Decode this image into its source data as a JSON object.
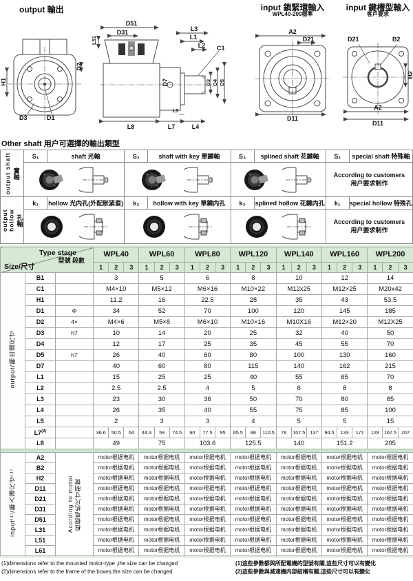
{
  "drawings": {
    "out_title": "output 輸出",
    "in1_title": "input 鎖緊環輸入",
    "in1_sub": "WPL40-200標準",
    "in2_title": "input 鍵槽型輸入",
    "in2_sub": "客戶要求",
    "h1": "H1",
    "d2": "D2",
    "d3": "D3",
    "d1": "D1",
    "d51": "D51",
    "d31": "D31",
    "l51": "L51",
    "l3": "L3",
    "l1": "L1",
    "l2": "L2",
    "c1": "C1",
    "d7": "D7",
    "d4": "D4",
    "d5": "D5",
    "l8": "L8",
    "l7": "L7",
    "l5": "L5",
    "l4": "L4",
    "a2": "A2",
    "d21": "D21",
    "d11": "D11",
    "b2": "B2",
    "h2": "H2"
  },
  "other_shaft": {
    "title": "Other shaft  用户可選擇的輸出類型",
    "rows": [
      {
        "side_en": "output shaft",
        "side_cn": "實軸",
        "cells": [
          {
            "code": "S₁",
            "name": "shaft 光軸"
          },
          {
            "code": "S₂",
            "name": "shaft with key 單鍵軸"
          },
          {
            "code": "S₃",
            "name": "splined shaft 花鍵軸"
          },
          {
            "code": "S₁",
            "name": "special shaft 特殊軸"
          }
        ],
        "note_en": "According to customers",
        "note_cn": "用户要求制作"
      },
      {
        "side_en": "output hollow",
        "side_cn": "孔軸",
        "cells": [
          {
            "code": "k₁",
            "name": "hollow 光内孔(外配胀紧套)"
          },
          {
            "code": "k₂",
            "name": "hollow with key 單鍵内孔"
          },
          {
            "code": "k₃",
            "name": "splined hollow 花鍵内孔"
          },
          {
            "code": "k₁",
            "name": "special hollow 特殊孔"
          }
        ],
        "note_en": "According to customers",
        "note_cn": "用户要求制作"
      }
    ]
  },
  "spec_table": {
    "corner_en": "Type stage",
    "corner_cn": "型號 段數",
    "corner_size": "Size/尺寸",
    "models": [
      "WPL40",
      "WPL60",
      "WPL80",
      "WPL120",
      "WPL140",
      "WPL160",
      "WPL200"
    ],
    "stages": [
      "1",
      "2",
      "3"
    ],
    "output_group_label": "output/輸出端尺寸",
    "rows": [
      {
        "label": "B1",
        "symbol": "",
        "values": [
          "3",
          "5",
          "6",
          "8",
          "10",
          "12",
          "14"
        ]
      },
      {
        "label": "C1",
        "symbol": "",
        "values": [
          "M4×10",
          "M5×12",
          "M6×16",
          "M10×22",
          "M12x25",
          "M12×25",
          "M20x42"
        ]
      },
      {
        "label": "H1",
        "symbol": "",
        "values": [
          "11.2",
          "16",
          "22.5",
          "28",
          "35",
          "43",
          "53.5"
        ]
      },
      {
        "label": "D1",
        "symbol": "Φ",
        "values": [
          "34",
          "52",
          "70",
          "100",
          "120",
          "145",
          "185"
        ]
      },
      {
        "label": "D2",
        "symbol": "4×",
        "values": [
          "M4×6",
          "M5×8",
          "M6×10",
          "M10×16",
          "M10X16",
          "M12×20",
          "M12X25"
        ]
      },
      {
        "label": "D3",
        "symbol": "h7",
        "values": [
          "10",
          "14",
          "20",
          "25",
          "32",
          "40",
          "50"
        ]
      },
      {
        "label": "D4",
        "symbol": "",
        "values": [
          "12",
          "17",
          "25",
          "35",
          "45",
          "55",
          "70"
        ]
      },
      {
        "label": "D5",
        "symbol": "h7",
        "values": [
          "26",
          "40",
          "60",
          "80",
          "100",
          "130",
          "160"
        ]
      },
      {
        "label": "D7",
        "symbol": "",
        "values": [
          "40",
          "60",
          "80",
          "115",
          "140",
          "162",
          "215"
        ]
      },
      {
        "label": "L1",
        "symbol": "",
        "values": [
          "15",
          "25",
          "25",
          "40",
          "55",
          "65",
          "70"
        ]
      },
      {
        "label": "L2",
        "symbol": "",
        "values": [
          "2.5",
          "2.5",
          "4",
          "5",
          "6",
          "8",
          "8"
        ]
      },
      {
        "label": "L3",
        "symbol": "",
        "values": [
          "23",
          "30",
          "36",
          "50",
          "70",
          "80",
          "85"
        ]
      },
      {
        "label": "L4",
        "symbol": "",
        "values": [
          "26",
          "35",
          "40",
          "55",
          "75",
          "85",
          "100"
        ]
      },
      {
        "label": "L5",
        "symbol": "",
        "values": [
          "2",
          "3",
          "3",
          "4",
          "5",
          "5",
          "15"
        ]
      },
      {
        "label": "L7",
        "sup": "(2)",
        "per_stage": true,
        "values": [
          [
            "36.6",
            "50.5",
            "64"
          ],
          [
            "44.3",
            "59",
            "74.5"
          ],
          [
            "60",
            "77.5",
            "95"
          ],
          [
            "65.5",
            "88",
            "110.5"
          ],
          [
            "78",
            "107.5",
            "137"
          ],
          [
            "94.5",
            "133",
            "171"
          ],
          [
            "128",
            "167.5",
            "207"
          ]
        ]
      },
      {
        "label": "L8",
        "symbol": "",
        "values": [
          "49",
          "75",
          "103.6",
          "125.5",
          "140",
          "151.2",
          "205"
        ]
      }
    ],
    "input_group_label": "input⁽¹⁾/輸入端尺寸⁽¹⁾",
    "input_note_en": "Acording to motor",
    "input_note_cn": "根据电机尺寸制做",
    "motor_cell": "motor根据电机",
    "input_rows": [
      "A2",
      "B2",
      "H2",
      "D11",
      "D21",
      "D31",
      "D51",
      "L31",
      "L51",
      "L61"
    ]
  },
  "footnotes": {
    "en1": "(1)dimensions refer to the mounted motor-type ,the size can be changed",
    "en2": "(2)dimensions refer to the frame of the boxes,the size can be changed",
    "cn1": "(1)這些參數都與所配電機的型號有關,這些尺寸可以有變化",
    "cn2": "(2)這些參數與減速機内部結構有關,這些尺寸可以有變化"
  }
}
